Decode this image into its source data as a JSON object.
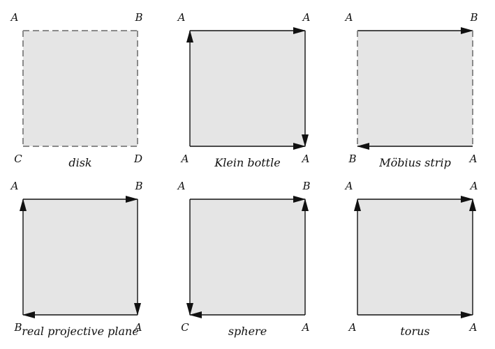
{
  "colors": {
    "fill": "#e5e5e5",
    "edge_solid": "#111111",
    "edge_dashed": "#8a8a8a",
    "text": "#111111"
  },
  "panels": [
    {
      "id": "disk",
      "caption": "disk",
      "vertices": {
        "tl": "A",
        "tr": "B",
        "bl": "C",
        "br": "D"
      },
      "edges": {
        "top": {
          "style": "dashed",
          "arrow": "none"
        },
        "right": {
          "style": "dashed",
          "arrow": "none"
        },
        "bottom": {
          "style": "dashed",
          "arrow": "none"
        },
        "left": {
          "style": "dashed",
          "arrow": "none"
        }
      }
    },
    {
      "id": "klein-bottle",
      "caption": "Klein bottle",
      "vertices": {
        "tl": "A",
        "tr": "A",
        "bl": "A",
        "br": "A"
      },
      "edges": {
        "top": {
          "style": "solid",
          "arrow": "end"
        },
        "right": {
          "style": "solid",
          "arrow": "end"
        },
        "bottom": {
          "style": "solid",
          "arrow": "end"
        },
        "left": {
          "style": "solid",
          "arrow": "end"
        }
      }
    },
    {
      "id": "mobius-strip",
      "caption": "Möbius strip",
      "vertices": {
        "tl": "A",
        "tr": "B",
        "bl": "B",
        "br": "A"
      },
      "edges": {
        "top": {
          "style": "solid",
          "arrow": "end"
        },
        "right": {
          "style": "dashed",
          "arrow": "none"
        },
        "bottom": {
          "style": "solid",
          "arrow": "end"
        },
        "left": {
          "style": "dashed",
          "arrow": "none"
        }
      }
    },
    {
      "id": "real-projective-plane",
      "caption": "real projective plane",
      "vertices": {
        "tl": "A",
        "tr": "B",
        "bl": "B",
        "br": "A"
      },
      "edges": {
        "top": {
          "style": "solid",
          "arrow": "end"
        },
        "right": {
          "style": "solid",
          "arrow": "end"
        },
        "bottom": {
          "style": "solid",
          "arrow": "end"
        },
        "left": {
          "style": "solid",
          "arrow": "end"
        }
      }
    },
    {
      "id": "sphere",
      "caption": "sphere",
      "vertices": {
        "tl": "A",
        "tr": "B",
        "bl": "C",
        "br": "A"
      },
      "edges": {
        "top": {
          "style": "solid",
          "arrow": "end"
        },
        "right": {
          "style": "solid",
          "arrow": "end"
        },
        "bottom": {
          "style": "solid",
          "arrow": "end"
        },
        "left": {
          "style": "solid",
          "arrow": "end"
        }
      }
    },
    {
      "id": "torus",
      "caption": "torus",
      "vertices": {
        "tl": "A",
        "tr": "A",
        "bl": "A",
        "br": "A"
      },
      "edges": {
        "top": {
          "style": "solid",
          "arrow": "end"
        },
        "right": {
          "style": "solid",
          "arrow": "end"
        },
        "bottom": {
          "style": "solid",
          "arrow": "end"
        },
        "left": {
          "style": "solid",
          "arrow": "end"
        }
      }
    }
  ]
}
